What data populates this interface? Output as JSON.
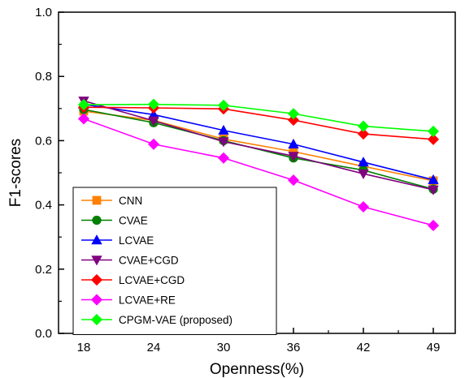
{
  "chart_data": {
    "type": "line",
    "title": "",
    "xlabel": "Openness(%)",
    "ylabel": "F1-scores",
    "categories": [
      "18",
      "24",
      "30",
      "36",
      "42",
      "49"
    ],
    "ylim": [
      0.0,
      1.0
    ],
    "yticks": [
      "0.0",
      "0.2",
      "0.4",
      "0.6",
      "0.8",
      "1.0"
    ],
    "grid": false,
    "legend_position": "bottom-left",
    "series": [
      {
        "name": "CNN",
        "color": "#ff8000",
        "marker": "square",
        "values": [
          0.692,
          0.663,
          0.605,
          0.566,
          0.52,
          0.475
        ]
      },
      {
        "name": "CVAE",
        "color": "#007f00",
        "marker": "circle",
        "values": [
          0.697,
          0.656,
          0.6,
          0.546,
          0.508,
          0.449
        ]
      },
      {
        "name": "LCVAE",
        "color": "#0000ff",
        "marker": "triangle-up",
        "values": [
          0.713,
          0.681,
          0.632,
          0.589,
          0.533,
          0.478
        ]
      },
      {
        "name": "CVAE+CGD",
        "color": "#80007f",
        "marker": "triangle-down",
        "values": [
          0.724,
          0.662,
          0.597,
          0.552,
          0.497,
          0.447
        ]
      },
      {
        "name": "LCVAE+CGD",
        "color": "#ff0000",
        "marker": "diamond",
        "values": [
          0.704,
          0.702,
          0.699,
          0.664,
          0.621,
          0.604
        ]
      },
      {
        "name": "LCVAE+RE",
        "color": "#ff00ff",
        "marker": "diamond",
        "values": [
          0.668,
          0.589,
          0.546,
          0.477,
          0.394,
          0.336
        ]
      },
      {
        "name": "CPGM-VAE (proposed)",
        "color": "#00ff00",
        "marker": "diamond",
        "values": [
          0.712,
          0.713,
          0.71,
          0.684,
          0.645,
          0.629
        ]
      }
    ]
  }
}
